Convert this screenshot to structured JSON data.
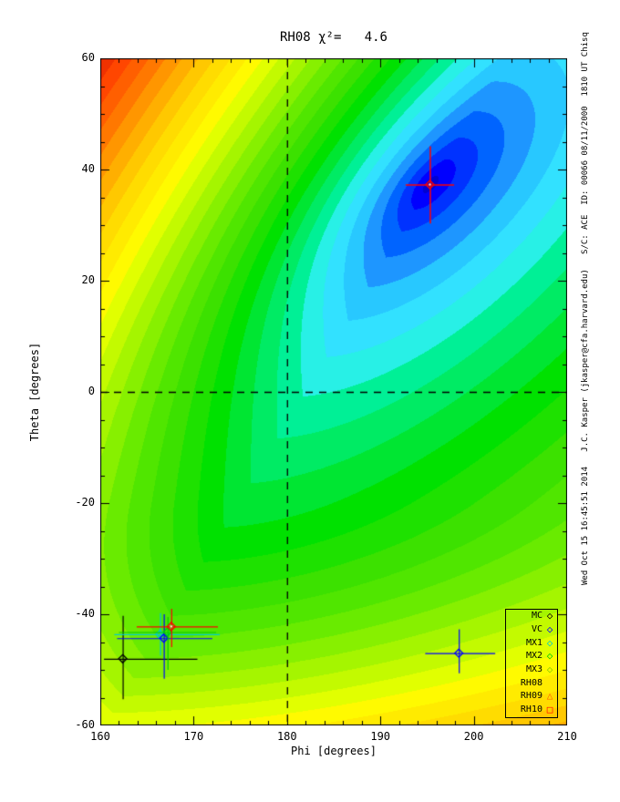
{
  "page": {
    "background": "#ffffff"
  },
  "header": {
    "title": "RH08 χ²=   4.6"
  },
  "caption_right": "Wed Oct 15 16:45:51 2014   J.C. Kasper (jkasper@cfa.harvard.edu)   S/C: ACE  ID: 00066 08/11/2000  1810 UT Chisq",
  "chart_data": {
    "type": "heatmap",
    "subtype": "filled-contour-chisq-surface",
    "title": "RH08 χ²=   4.6",
    "chi2_min_value": 4.6,
    "xlabel": "Phi [degrees]",
    "ylabel": "Theta [degrees]",
    "xlim": [
      160,
      210
    ],
    "ylim": [
      -60,
      60
    ],
    "xticks_major": [
      160,
      170,
      180,
      190,
      200,
      210
    ],
    "xtick_minor_step": 2,
    "yticks_major": [
      -60,
      -40,
      -20,
      0,
      20,
      40,
      60
    ],
    "ytick_minor_step": 5,
    "grid": "off",
    "dashed_crosshair": {
      "phi": 180,
      "theta": 0,
      "color": "#000000"
    },
    "minimum_marker": {
      "phi": 195.3,
      "theta": 37.3,
      "color": "#ff0000",
      "shape": "diamond-cross",
      "cross_x_extent": [
        192.7,
        197.9
      ],
      "cross_y_extent": [
        30.3,
        44.2
      ]
    },
    "points": [
      {
        "shape": "diamond",
        "color": "#000000",
        "phi": 162.4,
        "theta": -48.0,
        "xerr": [
          160.4,
          170.4
        ],
        "yerr": [
          -55.3,
          -40.3
        ]
      },
      {
        "shape": "diamond",
        "color": "#0000ff",
        "phi": 198.4,
        "theta": -47.0,
        "xerr": [
          194.8,
          202.3
        ],
        "yerr": [
          -50.6,
          -42.7
        ]
      },
      {
        "shape": "diamond",
        "color": "#00cccc",
        "phi": 166.4,
        "theta": -43.6,
        "xerr": [
          161.5,
          172.8
        ],
        "yerr": [
          -47.4,
          -39.8
        ]
      },
      {
        "shape": "diamond",
        "color": "#0000ff",
        "phi": 166.8,
        "theta": -44.3,
        "xerr": [
          161.8,
          172.0
        ],
        "yerr": [
          -51.6,
          -40.0
        ]
      },
      {
        "shape": "diamond",
        "color": "#00cc00",
        "phi": 167.2,
        "theta": -43.2,
        "xerr": [
          162.0,
          172.4
        ],
        "yerr": [
          -50.0,
          -40.5
        ]
      },
      {
        "shape": "diamond-dot",
        "color": "#ff0000",
        "phi": 167.6,
        "theta": -42.2,
        "xerr": [
          163.9,
          172.6
        ],
        "yerr": [
          -45.9,
          -39.0
        ]
      }
    ],
    "legend": {
      "position": "bottom-right",
      "entries": [
        {
          "label": "MC",
          "marker": "diamond",
          "color": "#000000"
        },
        {
          "label": "VC",
          "marker": "diamond",
          "color": "#0000ff"
        },
        {
          "label": "MX1",
          "marker": "diamond",
          "color": "#00cccc"
        },
        {
          "label": "MX2",
          "marker": "diamond",
          "color": "#00cc00"
        },
        {
          "label": "MX3",
          "marker": "diamond",
          "color": "#8ccc00"
        },
        {
          "label": "RH08",
          "marker": "none",
          "color": "#000000"
        },
        {
          "label": "RH09",
          "marker": "triangle",
          "color": "#ff6400"
        },
        {
          "label": "RH10",
          "marker": "square",
          "color": "#ff0000"
        }
      ]
    },
    "surface_model": {
      "comment": "chi-squared surface: banded rainbow colormap, minimum at (195.3,37.3)",
      "phi0": 195.3,
      "theta0": 37.3,
      "theta_scale": 0.45,
      "angle_deg": 32,
      "su": 4.5,
      "sv": 2.0,
      "exponent": 0.65,
      "ramp": {
        "coef": 7.0,
        "sx": 50,
        "sy": 140
      },
      "bottom": {
        "coef": 2.0,
        "start": -20,
        "span": 40
      },
      "vmax": 11.85,
      "n_bands": 30,
      "palette": [
        "#0000d2",
        "#0000ff",
        "#0032ff",
        "#0064ff",
        "#1e96ff",
        "#28c8ff",
        "#32e1ff",
        "#28f0e6",
        "#00f096",
        "#00eb64",
        "#00e632",
        "#00e100",
        "#1ee100",
        "#3ce100",
        "#50e600",
        "#69eb00",
        "#87f000",
        "#a5f500",
        "#c3fa00",
        "#e1ff00",
        "#fffa00",
        "#ffeb00",
        "#ffdc00",
        "#ffc800",
        "#ffaf00",
        "#ff9600",
        "#ff7800",
        "#ff5f00",
        "#ff4600",
        "#f03200"
      ]
    }
  }
}
